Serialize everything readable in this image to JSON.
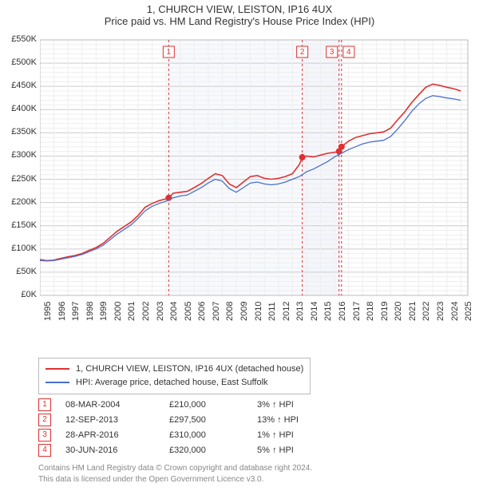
{
  "title": {
    "line1": "1, CHURCH VIEW, LEISTON, IP16 4UX",
    "line2": "Price paid vs. HM Land Registry's House Price Index (HPI)"
  },
  "chart": {
    "type": "line",
    "background_color": "#ffffff",
    "plot_border_color": "#bbbbbb",
    "grid_major_color": "#cccccc",
    "grid_minor_color": "#eeeeee",
    "x": {
      "min": 1995,
      "max": 2025.5,
      "tick_start": 1995,
      "tick_step": 1,
      "label_rotation": -90
    },
    "y": {
      "min": 0,
      "max": 550000,
      "tick_step_major": 50000,
      "tick_step_minor": 10000,
      "tick_format": "gbp_k"
    },
    "bands": [
      {
        "from": 2004.18,
        "to": 2013.7,
        "color": "#eef2fb"
      },
      {
        "from": 2013.7,
        "to": 2016.32,
        "color": "#e6ecf8"
      },
      {
        "from": 2016.32,
        "to": 2016.5,
        "color": "#eef2fb"
      }
    ],
    "series": [
      {
        "id": "subject",
        "label": "1, CHURCH VIEW, LEISTON, IP16 4UX (detached house)",
        "color": "#e03030",
        "width": 1.6,
        "points": [
          [
            1995.0,
            77000
          ],
          [
            1995.5,
            75000
          ],
          [
            1996.0,
            76000
          ],
          [
            1996.5,
            80000
          ],
          [
            1997.0,
            83000
          ],
          [
            1997.5,
            86000
          ],
          [
            1998.0,
            90000
          ],
          [
            1998.5,
            97000
          ],
          [
            1999.0,
            103000
          ],
          [
            1999.5,
            112000
          ],
          [
            2000.0,
            125000
          ],
          [
            2000.5,
            138000
          ],
          [
            2001.0,
            148000
          ],
          [
            2001.5,
            158000
          ],
          [
            2002.0,
            172000
          ],
          [
            2002.5,
            190000
          ],
          [
            2003.0,
            198000
          ],
          [
            2003.5,
            204000
          ],
          [
            2004.0,
            208000
          ],
          [
            2004.18,
            210000
          ],
          [
            2004.5,
            220000
          ],
          [
            2005.0,
            222000
          ],
          [
            2005.5,
            224000
          ],
          [
            2006.0,
            232000
          ],
          [
            2006.5,
            241000
          ],
          [
            2007.0,
            252000
          ],
          [
            2007.5,
            262000
          ],
          [
            2008.0,
            258000
          ],
          [
            2008.5,
            240000
          ],
          [
            2009.0,
            232000
          ],
          [
            2009.5,
            244000
          ],
          [
            2010.0,
            256000
          ],
          [
            2010.5,
            258000
          ],
          [
            2011.0,
            252000
          ],
          [
            2011.5,
            250000
          ],
          [
            2012.0,
            252000
          ],
          [
            2012.5,
            256000
          ],
          [
            2013.0,
            262000
          ],
          [
            2013.5,
            282000
          ],
          [
            2013.7,
            297500
          ],
          [
            2014.0,
            300000
          ],
          [
            2014.5,
            298000
          ],
          [
            2015.0,
            302000
          ],
          [
            2015.5,
            306000
          ],
          [
            2016.0,
            308000
          ],
          [
            2016.32,
            310000
          ],
          [
            2016.5,
            320000
          ],
          [
            2017.0,
            332000
          ],
          [
            2017.5,
            340000
          ],
          [
            2018.0,
            344000
          ],
          [
            2018.5,
            348000
          ],
          [
            2019.0,
            350000
          ],
          [
            2019.5,
            352000
          ],
          [
            2020.0,
            360000
          ],
          [
            2020.5,
            378000
          ],
          [
            2021.0,
            395000
          ],
          [
            2021.5,
            415000
          ],
          [
            2022.0,
            432000
          ],
          [
            2022.5,
            448000
          ],
          [
            2023.0,
            455000
          ],
          [
            2023.5,
            452000
          ],
          [
            2024.0,
            448000
          ],
          [
            2024.5,
            445000
          ],
          [
            2025.0,
            440000
          ]
        ]
      },
      {
        "id": "hpi",
        "label": "HPI: Average price, detached house, East Suffolk",
        "color": "#4a6fd0",
        "width": 1.3,
        "points": [
          [
            1995.0,
            75000
          ],
          [
            1995.5,
            74000
          ],
          [
            1996.0,
            75000
          ],
          [
            1996.5,
            78000
          ],
          [
            1997.0,
            81000
          ],
          [
            1997.5,
            84000
          ],
          [
            1998.0,
            88000
          ],
          [
            1998.5,
            94000
          ],
          [
            1999.0,
            100000
          ],
          [
            1999.5,
            108000
          ],
          [
            2000.0,
            120000
          ],
          [
            2000.5,
            132000
          ],
          [
            2001.0,
            142000
          ],
          [
            2001.5,
            152000
          ],
          [
            2002.0,
            166000
          ],
          [
            2002.5,
            182000
          ],
          [
            2003.0,
            192000
          ],
          [
            2003.5,
            198000
          ],
          [
            2004.0,
            203000
          ],
          [
            2004.5,
            210000
          ],
          [
            2005.0,
            214000
          ],
          [
            2005.5,
            216000
          ],
          [
            2006.0,
            224000
          ],
          [
            2006.5,
            232000
          ],
          [
            2007.0,
            242000
          ],
          [
            2007.5,
            250000
          ],
          [
            2008.0,
            246000
          ],
          [
            2008.5,
            230000
          ],
          [
            2009.0,
            222000
          ],
          [
            2009.5,
            232000
          ],
          [
            2010.0,
            242000
          ],
          [
            2010.5,
            244000
          ],
          [
            2011.0,
            240000
          ],
          [
            2011.5,
            238000
          ],
          [
            2012.0,
            240000
          ],
          [
            2012.5,
            244000
          ],
          [
            2013.0,
            250000
          ],
          [
            2013.5,
            256000
          ],
          [
            2014.0,
            266000
          ],
          [
            2014.5,
            272000
          ],
          [
            2015.0,
            280000
          ],
          [
            2015.5,
            288000
          ],
          [
            2016.0,
            298000
          ],
          [
            2016.5,
            306000
          ],
          [
            2017.0,
            314000
          ],
          [
            2017.5,
            320000
          ],
          [
            2018.0,
            326000
          ],
          [
            2018.5,
            330000
          ],
          [
            2019.0,
            332000
          ],
          [
            2019.5,
            334000
          ],
          [
            2020.0,
            342000
          ],
          [
            2020.5,
            358000
          ],
          [
            2021.0,
            376000
          ],
          [
            2021.5,
            396000
          ],
          [
            2022.0,
            412000
          ],
          [
            2022.5,
            424000
          ],
          [
            2023.0,
            430000
          ],
          [
            2023.5,
            428000
          ],
          [
            2024.0,
            425000
          ],
          [
            2024.5,
            423000
          ],
          [
            2025.0,
            420000
          ]
        ]
      }
    ],
    "events": [
      {
        "n": 1,
        "x": 2004.18,
        "color": "#e03030",
        "dot_y": 210000
      },
      {
        "n": 2,
        "x": 2013.7,
        "color": "#e03030",
        "dot_y": 297500
      },
      {
        "n": 3,
        "x": 2016.32,
        "color": "#e03030",
        "dot_y": 310000
      },
      {
        "n": 4,
        "x": 2016.5,
        "color": "#e03030",
        "dot_y": 320000
      }
    ]
  },
  "legend": {
    "items": [
      {
        "series": "subject"
      },
      {
        "series": "hpi"
      }
    ]
  },
  "event_table": {
    "rows": [
      {
        "n": 1,
        "date": "08-MAR-2004",
        "price": "£210,000",
        "delta": "3% ↑ HPI",
        "color": "#e03030"
      },
      {
        "n": 2,
        "date": "12-SEP-2013",
        "price": "£297,500",
        "delta": "13% ↑ HPI",
        "color": "#e03030"
      },
      {
        "n": 3,
        "date": "28-APR-2016",
        "price": "£310,000",
        "delta": "1% ↑ HPI",
        "color": "#e03030"
      },
      {
        "n": 4,
        "date": "30-JUN-2016",
        "price": "£320,000",
        "delta": "5% ↑ HPI",
        "color": "#e03030"
      }
    ]
  },
  "footer": {
    "line1": "Contains HM Land Registry data © Crown copyright and database right 2024.",
    "line2": "This data is licensed under the Open Government Licence v3.0."
  }
}
